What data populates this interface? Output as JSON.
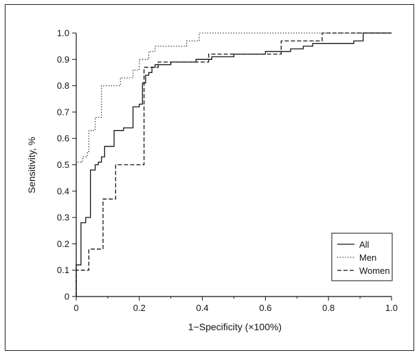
{
  "chart_data": {
    "type": "line",
    "xlabel": "1−Specificity (×100%)",
    "ylabel": "Sensitivity, %",
    "xlim": [
      0,
      1
    ],
    "ylim": [
      0,
      1
    ],
    "x_ticks": [
      "0",
      "0.2",
      "0.4",
      "0.6",
      "0.8",
      "1.0"
    ],
    "y_ticks": [
      "0",
      "0.1",
      "0.2",
      "0.3",
      "0.4",
      "0.5",
      "0.6",
      "0.7",
      "0.8",
      "0.9",
      "1.0"
    ],
    "grid": false,
    "legend_position": "bottom-right",
    "series": [
      {
        "name": "All",
        "style": "solid",
        "points": [
          [
            0,
            0
          ],
          [
            0,
            0.12
          ],
          [
            0.015,
            0.12
          ],
          [
            0.015,
            0.28
          ],
          [
            0.03,
            0.28
          ],
          [
            0.03,
            0.3
          ],
          [
            0.045,
            0.3
          ],
          [
            0.045,
            0.48
          ],
          [
            0.06,
            0.48
          ],
          [
            0.06,
            0.5
          ],
          [
            0.07,
            0.5
          ],
          [
            0.07,
            0.51
          ],
          [
            0.08,
            0.51
          ],
          [
            0.08,
            0.53
          ],
          [
            0.09,
            0.53
          ],
          [
            0.09,
            0.57
          ],
          [
            0.12,
            0.57
          ],
          [
            0.12,
            0.63
          ],
          [
            0.15,
            0.63
          ],
          [
            0.15,
            0.64
          ],
          [
            0.18,
            0.64
          ],
          [
            0.18,
            0.72
          ],
          [
            0.2,
            0.72
          ],
          [
            0.2,
            0.73
          ],
          [
            0.21,
            0.73
          ],
          [
            0.21,
            0.81
          ],
          [
            0.22,
            0.81
          ],
          [
            0.22,
            0.84
          ],
          [
            0.23,
            0.84
          ],
          [
            0.23,
            0.85
          ],
          [
            0.24,
            0.85
          ],
          [
            0.24,
            0.87
          ],
          [
            0.25,
            0.87
          ],
          [
            0.25,
            0.88
          ],
          [
            0.3,
            0.88
          ],
          [
            0.3,
            0.89
          ],
          [
            0.38,
            0.89
          ],
          [
            0.38,
            0.9
          ],
          [
            0.43,
            0.9
          ],
          [
            0.43,
            0.91
          ],
          [
            0.5,
            0.91
          ],
          [
            0.5,
            0.92
          ],
          [
            0.6,
            0.92
          ],
          [
            0.6,
            0.93
          ],
          [
            0.68,
            0.93
          ],
          [
            0.68,
            0.94
          ],
          [
            0.72,
            0.94
          ],
          [
            0.72,
            0.95
          ],
          [
            0.75,
            0.95
          ],
          [
            0.75,
            0.96
          ],
          [
            0.88,
            0.96
          ],
          [
            0.88,
            0.97
          ],
          [
            0.91,
            0.97
          ],
          [
            0.91,
            1.0
          ],
          [
            1.0,
            1.0
          ]
        ]
      },
      {
        "name": "Men",
        "style": "dotted",
        "points": [
          [
            0,
            0
          ],
          [
            0,
            0.51
          ],
          [
            0.02,
            0.51
          ],
          [
            0.02,
            0.53
          ],
          [
            0.035,
            0.53
          ],
          [
            0.035,
            0.55
          ],
          [
            0.04,
            0.55
          ],
          [
            0.04,
            0.63
          ],
          [
            0.06,
            0.63
          ],
          [
            0.06,
            0.68
          ],
          [
            0.08,
            0.68
          ],
          [
            0.08,
            0.8
          ],
          [
            0.14,
            0.8
          ],
          [
            0.14,
            0.83
          ],
          [
            0.18,
            0.83
          ],
          [
            0.18,
            0.86
          ],
          [
            0.2,
            0.86
          ],
          [
            0.2,
            0.9
          ],
          [
            0.23,
            0.9
          ],
          [
            0.23,
            0.93
          ],
          [
            0.25,
            0.93
          ],
          [
            0.25,
            0.95
          ],
          [
            0.35,
            0.95
          ],
          [
            0.35,
            0.97
          ],
          [
            0.39,
            0.97
          ],
          [
            0.39,
            1.0
          ],
          [
            1.0,
            1.0
          ]
        ]
      },
      {
        "name": "Women",
        "style": "dashed",
        "points": [
          [
            0,
            0
          ],
          [
            0,
            0.1
          ],
          [
            0.04,
            0.1
          ],
          [
            0.04,
            0.18
          ],
          [
            0.085,
            0.18
          ],
          [
            0.085,
            0.37
          ],
          [
            0.125,
            0.37
          ],
          [
            0.125,
            0.5
          ],
          [
            0.215,
            0.5
          ],
          [
            0.215,
            0.87
          ],
          [
            0.26,
            0.87
          ],
          [
            0.26,
            0.89
          ],
          [
            0.42,
            0.89
          ],
          [
            0.42,
            0.92
          ],
          [
            0.65,
            0.92
          ],
          [
            0.65,
            0.97
          ],
          [
            0.78,
            0.97
          ],
          [
            0.78,
            1.0
          ],
          [
            1.0,
            1.0
          ]
        ]
      }
    ]
  }
}
